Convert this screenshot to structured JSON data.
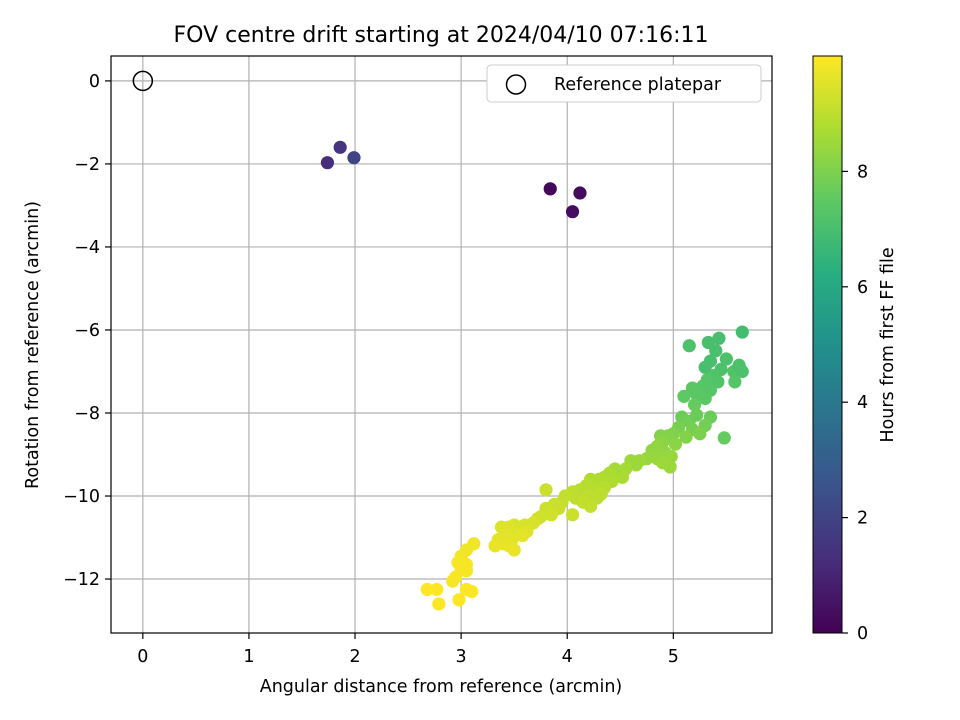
{
  "chart_data": {
    "type": "scatter",
    "title": "FOV centre drift starting at 2024/04/10 07:16:11",
    "xlabel": "Angular distance from reference (arcmin)",
    "ylabel": "Rotation from reference (arcmin)",
    "xlim": [
      -0.3,
      5.93
    ],
    "ylim": [
      -13.3,
      0.6
    ],
    "xticks": [
      0,
      1,
      2,
      3,
      4,
      5
    ],
    "yticks": [
      0,
      -2,
      -4,
      -6,
      -8,
      -10,
      -12
    ],
    "xtick_labels": [
      "0",
      "1",
      "2",
      "3",
      "4",
      "5"
    ],
    "ytick_labels": [
      "0",
      "−2",
      "−4",
      "−6",
      "−8",
      "−10",
      "−12"
    ],
    "grid": true,
    "legend": {
      "placement": "top-right",
      "entries": [
        "Reference platepar"
      ]
    },
    "colorbar": {
      "label": "Hours from first FF file",
      "range": [
        0,
        10
      ],
      "ticks": [
        0,
        2,
        4,
        6,
        8
      ],
      "tick_labels": [
        "0",
        "2",
        "4",
        "6",
        "8"
      ],
      "colormap": "viridis"
    },
    "reference_point": {
      "x": 0,
      "y": 0
    },
    "points": [
      {
        "x": 3.84,
        "y": -2.6,
        "h": 0.2
      },
      {
        "x": 4.12,
        "y": -2.7,
        "h": 0.3
      },
      {
        "x": 4.05,
        "y": -3.15,
        "h": 0.35
      },
      {
        "x": 1.74,
        "y": -1.97,
        "h": 1.3
      },
      {
        "x": 1.86,
        "y": -1.6,
        "h": 1.5
      },
      {
        "x": 1.99,
        "y": -1.85,
        "h": 2.0
      },
      {
        "x": 5.65,
        "y": -6.05,
        "h": 6.9
      },
      {
        "x": 5.43,
        "y": -6.2,
        "h": 7.0
      },
      {
        "x": 5.33,
        "y": -6.3,
        "h": 7.0
      },
      {
        "x": 5.15,
        "y": -6.38,
        "h": 7.1
      },
      {
        "x": 5.4,
        "y": -6.5,
        "h": 7.0
      },
      {
        "x": 5.35,
        "y": -6.75,
        "h": 7.0
      },
      {
        "x": 5.5,
        "y": -6.7,
        "h": 7.1
      },
      {
        "x": 5.3,
        "y": -6.9,
        "h": 7.0
      },
      {
        "x": 5.45,
        "y": -6.95,
        "h": 7.1
      },
      {
        "x": 5.57,
        "y": -7.0,
        "h": 7.2
      },
      {
        "x": 5.62,
        "y": -6.85,
        "h": 7.1
      },
      {
        "x": 5.65,
        "y": -7.0,
        "h": 7.1
      },
      {
        "x": 5.38,
        "y": -7.1,
        "h": 7.2
      },
      {
        "x": 5.32,
        "y": -7.2,
        "h": 7.3
      },
      {
        "x": 5.42,
        "y": -7.25,
        "h": 7.2
      },
      {
        "x": 5.58,
        "y": -7.25,
        "h": 7.3
      },
      {
        "x": 5.28,
        "y": -7.35,
        "h": 7.3
      },
      {
        "x": 5.18,
        "y": -7.4,
        "h": 7.4
      },
      {
        "x": 5.35,
        "y": -7.45,
        "h": 7.3
      },
      {
        "x": 5.22,
        "y": -7.55,
        "h": 7.4
      },
      {
        "x": 5.1,
        "y": -7.6,
        "h": 7.5
      },
      {
        "x": 5.3,
        "y": -7.65,
        "h": 7.4
      },
      {
        "x": 5.2,
        "y": -7.8,
        "h": 7.6
      },
      {
        "x": 5.35,
        "y": -8.1,
        "h": 7.7
      },
      {
        "x": 5.08,
        "y": -8.1,
        "h": 7.7
      },
      {
        "x": 5.15,
        "y": -8.2,
        "h": 7.8
      },
      {
        "x": 5.22,
        "y": -8.05,
        "h": 7.7
      },
      {
        "x": 5.3,
        "y": -8.3,
        "h": 7.8
      },
      {
        "x": 5.05,
        "y": -8.35,
        "h": 7.9
      },
      {
        "x": 5.18,
        "y": -8.4,
        "h": 7.9
      },
      {
        "x": 5.25,
        "y": -8.5,
        "h": 8.0
      },
      {
        "x": 5.0,
        "y": -8.5,
        "h": 8.0
      },
      {
        "x": 5.12,
        "y": -8.58,
        "h": 8.1
      },
      {
        "x": 5.48,
        "y": -8.6,
        "h": 7.6
      },
      {
        "x": 4.95,
        "y": -8.55,
        "h": 8.1
      },
      {
        "x": 4.88,
        "y": -8.55,
        "h": 8.1
      },
      {
        "x": 4.9,
        "y": -8.7,
        "h": 8.2
      },
      {
        "x": 5.02,
        "y": -8.75,
        "h": 8.2
      },
      {
        "x": 4.85,
        "y": -8.8,
        "h": 8.3
      },
      {
        "x": 4.8,
        "y": -8.9,
        "h": 8.3
      },
      {
        "x": 4.92,
        "y": -8.95,
        "h": 8.3
      },
      {
        "x": 4.98,
        "y": -9.05,
        "h": 8.4
      },
      {
        "x": 4.85,
        "y": -9.1,
        "h": 8.4
      },
      {
        "x": 4.75,
        "y": -9.1,
        "h": 8.4
      },
      {
        "x": 4.68,
        "y": -9.15,
        "h": 8.5
      },
      {
        "x": 4.6,
        "y": -9.15,
        "h": 8.5
      },
      {
        "x": 4.65,
        "y": -9.25,
        "h": 8.5
      },
      {
        "x": 4.9,
        "y": -9.2,
        "h": 8.5
      },
      {
        "x": 4.97,
        "y": -9.3,
        "h": 8.5
      },
      {
        "x": 4.55,
        "y": -9.35,
        "h": 8.6
      },
      {
        "x": 4.45,
        "y": -9.35,
        "h": 8.6
      },
      {
        "x": 4.5,
        "y": -9.45,
        "h": 8.6
      },
      {
        "x": 4.4,
        "y": -9.45,
        "h": 8.7
      },
      {
        "x": 4.35,
        "y": -9.55,
        "h": 8.7
      },
      {
        "x": 4.52,
        "y": -9.55,
        "h": 8.7
      },
      {
        "x": 4.3,
        "y": -9.6,
        "h": 8.8
      },
      {
        "x": 4.22,
        "y": -9.6,
        "h": 8.8
      },
      {
        "x": 4.42,
        "y": -9.65,
        "h": 8.8
      },
      {
        "x": 4.28,
        "y": -9.72,
        "h": 8.8
      },
      {
        "x": 4.18,
        "y": -9.75,
        "h": 8.9
      },
      {
        "x": 4.35,
        "y": -9.8,
        "h": 8.9
      },
      {
        "x": 4.25,
        "y": -9.85,
        "h": 8.9
      },
      {
        "x": 4.12,
        "y": -9.85,
        "h": 8.9
      },
      {
        "x": 4.05,
        "y": -9.9,
        "h": 9.0
      },
      {
        "x": 4.32,
        "y": -9.95,
        "h": 9.0
      },
      {
        "x": 4.2,
        "y": -10.0,
        "h": 9.0
      },
      {
        "x": 4.08,
        "y": -10.05,
        "h": 9.0
      },
      {
        "x": 3.98,
        "y": -10.0,
        "h": 9.1
      },
      {
        "x": 4.28,
        "y": -10.05,
        "h": 9.0
      },
      {
        "x": 4.15,
        "y": -10.15,
        "h": 9.1
      },
      {
        "x": 3.95,
        "y": -10.15,
        "h": 9.1
      },
      {
        "x": 4.22,
        "y": -10.25,
        "h": 9.1
      },
      {
        "x": 3.88,
        "y": -10.2,
        "h": 9.2
      },
      {
        "x": 3.92,
        "y": -10.3,
        "h": 9.2
      },
      {
        "x": 3.8,
        "y": -10.3,
        "h": 9.2
      },
      {
        "x": 4.05,
        "y": -10.45,
        "h": 9.2
      },
      {
        "x": 3.85,
        "y": -10.45,
        "h": 9.3
      },
      {
        "x": 3.75,
        "y": -10.5,
        "h": 9.3
      },
      {
        "x": 3.72,
        "y": -10.55,
        "h": 9.3
      },
      {
        "x": 3.8,
        "y": -9.85,
        "h": 9.2
      },
      {
        "x": 3.68,
        "y": -10.65,
        "h": 9.4
      },
      {
        "x": 3.6,
        "y": -10.7,
        "h": 9.4
      },
      {
        "x": 3.55,
        "y": -10.75,
        "h": 9.4
      },
      {
        "x": 3.5,
        "y": -10.7,
        "h": 9.4
      },
      {
        "x": 3.45,
        "y": -10.75,
        "h": 9.5
      },
      {
        "x": 3.38,
        "y": -10.75,
        "h": 9.5
      },
      {
        "x": 3.62,
        "y": -10.85,
        "h": 9.5
      },
      {
        "x": 3.52,
        "y": -10.9,
        "h": 9.5
      },
      {
        "x": 3.42,
        "y": -10.95,
        "h": 9.6
      },
      {
        "x": 3.35,
        "y": -11.05,
        "h": 9.6
      },
      {
        "x": 3.48,
        "y": -11.05,
        "h": 9.6
      },
      {
        "x": 3.58,
        "y": -10.95,
        "h": 9.6
      },
      {
        "x": 3.4,
        "y": -11.15,
        "h": 9.6
      },
      {
        "x": 3.32,
        "y": -11.2,
        "h": 9.7
      },
      {
        "x": 3.5,
        "y": -11.3,
        "h": 9.7
      },
      {
        "x": 3.45,
        "y": -11.2,
        "h": 9.7
      },
      {
        "x": 3.12,
        "y": -11.15,
        "h": 9.8
      },
      {
        "x": 3.05,
        "y": -11.3,
        "h": 9.8
      },
      {
        "x": 3.0,
        "y": -11.45,
        "h": 9.8
      },
      {
        "x": 2.97,
        "y": -11.6,
        "h": 9.9
      },
      {
        "x": 3.05,
        "y": -11.65,
        "h": 9.9
      },
      {
        "x": 3.0,
        "y": -11.75,
        "h": 9.9
      },
      {
        "x": 3.05,
        "y": -11.8,
        "h": 9.9
      },
      {
        "x": 2.95,
        "y": -11.95,
        "h": 9.9
      },
      {
        "x": 2.92,
        "y": -12.05,
        "h": 9.9
      },
      {
        "x": 2.68,
        "y": -12.25,
        "h": 10.0
      },
      {
        "x": 2.77,
        "y": -12.25,
        "h": 10.0
      },
      {
        "x": 3.05,
        "y": -12.25,
        "h": 10.0
      },
      {
        "x": 3.1,
        "y": -12.3,
        "h": 10.0
      },
      {
        "x": 2.98,
        "y": -12.5,
        "h": 10.0
      },
      {
        "x": 2.79,
        "y": -12.6,
        "h": 10.0
      }
    ]
  }
}
